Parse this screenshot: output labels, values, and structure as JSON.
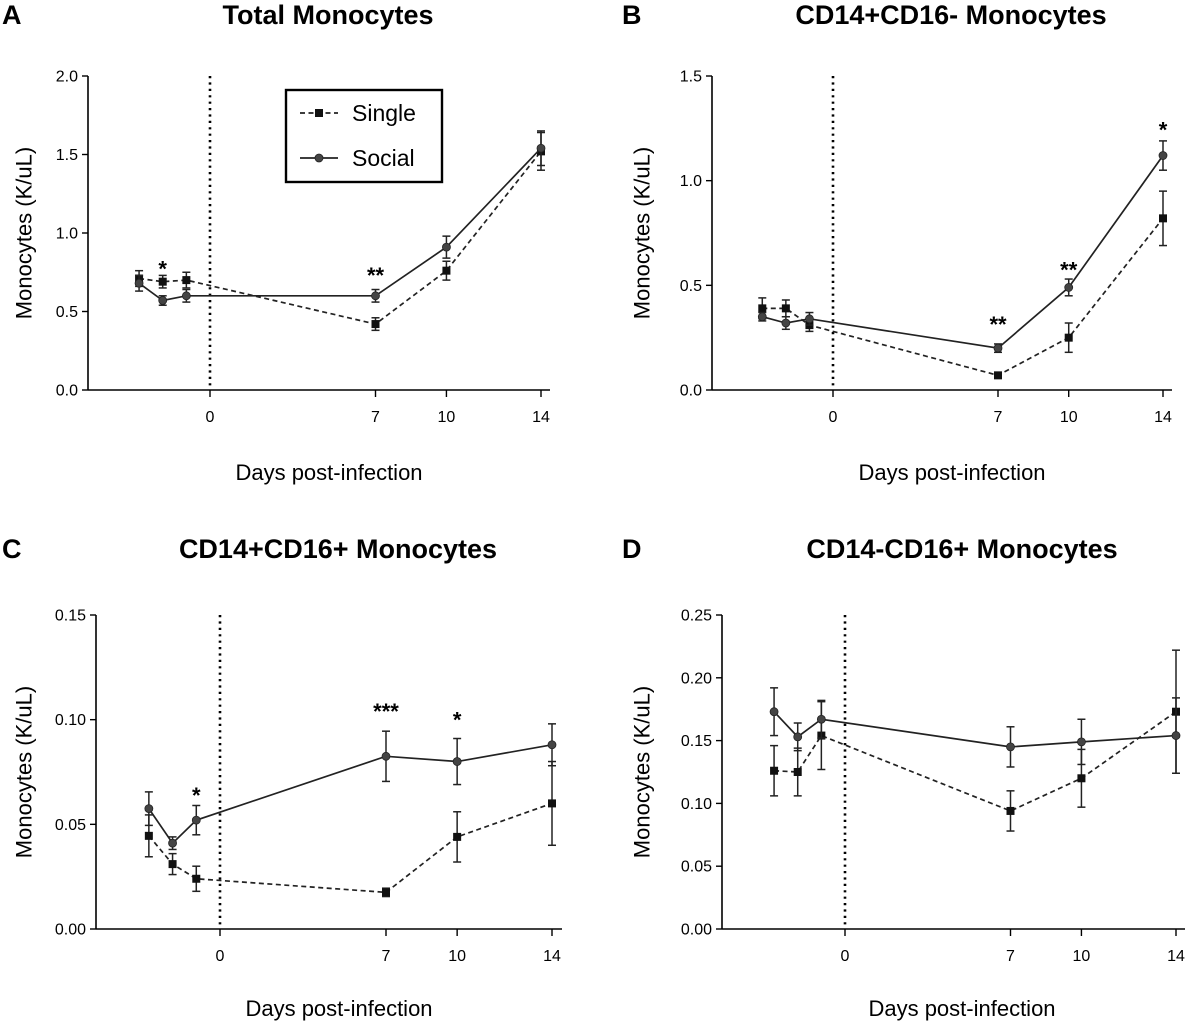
{
  "figure": {
    "legend": {
      "single_label": "Single",
      "social_label": "Social"
    }
  },
  "chart_data": [
    {
      "letter": "A",
      "type": "line",
      "title": "Total Monocytes",
      "xlabel": "Days post-infection",
      "ylabel": "Monocytes (K/uL)",
      "ylim": [
        0,
        2.0
      ],
      "yticks": [
        0.0,
        0.5,
        1.0,
        1.5,
        2.0
      ],
      "ytick_labels": [
        "0.0",
        "0.5",
        "1.0",
        "1.5",
        "2.0"
      ],
      "xlim": [
        -5,
        15
      ],
      "xticks": [
        0,
        7,
        10,
        14
      ],
      "xtick_labels": [
        "0",
        "7",
        "10",
        "14"
      ],
      "reference_line_x": 0,
      "has_legend": true,
      "series": [
        {
          "name": "Single",
          "style": "dashed",
          "marker": "square",
          "x": [
            -3,
            -2,
            -1,
            7,
            10,
            14
          ],
          "values": [
            0.71,
            0.69,
            0.7,
            0.42,
            0.76,
            1.52
          ],
          "err": [
            0.05,
            0.04,
            0.05,
            0.04,
            0.06,
            0.12
          ]
        },
        {
          "name": "Social",
          "style": "solid",
          "marker": "circle",
          "x": [
            -3,
            -2,
            -1,
            7,
            10,
            14
          ],
          "values": [
            0.68,
            0.57,
            0.6,
            0.6,
            0.91,
            1.54
          ],
          "err": [
            0.05,
            0.03,
            0.04,
            0.04,
            0.07,
            0.11
          ]
        }
      ],
      "annotations": [
        {
          "x": -2,
          "y": 0.78,
          "text": "*"
        },
        {
          "x": 7,
          "y": 0.74,
          "text": "**"
        }
      ]
    },
    {
      "letter": "B",
      "type": "line",
      "title": "CD14+CD16- Monocytes",
      "xlabel": "Days post-infection",
      "ylabel": "Monocytes (K/uL)",
      "ylim": [
        0,
        1.5
      ],
      "yticks": [
        0.0,
        0.5,
        1.0,
        1.5
      ],
      "ytick_labels": [
        "0.0",
        "0.5",
        "1.0",
        "1.5"
      ],
      "xlim": [
        -5,
        15
      ],
      "xticks": [
        0,
        7,
        10,
        14
      ],
      "xtick_labels": [
        "0",
        "7",
        "10",
        "14"
      ],
      "reference_line_x": 0,
      "has_legend": false,
      "series": [
        {
          "name": "Single",
          "style": "dashed",
          "marker": "square",
          "x": [
            -3,
            -2,
            -1,
            7,
            10,
            14
          ],
          "values": [
            0.39,
            0.39,
            0.31,
            0.07,
            0.25,
            0.82
          ],
          "err": [
            0.05,
            0.04,
            0.03,
            0.01,
            0.07,
            0.13
          ]
        },
        {
          "name": "Social",
          "style": "solid",
          "marker": "circle",
          "x": [
            -3,
            -2,
            -1,
            7,
            10,
            14
          ],
          "values": [
            0.35,
            0.32,
            0.34,
            0.2,
            0.49,
            1.12
          ],
          "err": [
            0.02,
            0.03,
            0.03,
            0.02,
            0.04,
            0.07
          ]
        }
      ],
      "annotations": [
        {
          "x": 7,
          "y": 0.32,
          "text": "**"
        },
        {
          "x": 10,
          "y": 0.58,
          "text": "**"
        },
        {
          "x": 14,
          "y": 1.25,
          "text": "*"
        }
      ]
    },
    {
      "letter": "C",
      "type": "line",
      "title": "CD14+CD16+ Monocytes",
      "xlabel": "Days post-infection",
      "ylabel": "Monocytes (K/uL)",
      "ylim": [
        0,
        0.15
      ],
      "yticks": [
        0.0,
        0.05,
        0.1,
        0.15
      ],
      "ytick_labels": [
        "0.00",
        "0.05",
        "0.10",
        "0.15"
      ],
      "xlim": [
        -5,
        15
      ],
      "xticks": [
        0,
        7,
        10,
        14
      ],
      "xtick_labels": [
        "0",
        "7",
        "10",
        "14"
      ],
      "reference_line_x": 0,
      "has_legend": false,
      "series": [
        {
          "name": "Single",
          "style": "dashed",
          "marker": "square",
          "x": [
            -3,
            -2,
            -1,
            7,
            10,
            14
          ],
          "values": [
            0.0445,
            0.031,
            0.024,
            0.0175,
            0.044,
            0.06
          ],
          "err": [
            0.01,
            0.005,
            0.006,
            0.002,
            0.012,
            0.02
          ]
        },
        {
          "name": "Social",
          "style": "solid",
          "marker": "circle",
          "x": [
            -3,
            -2,
            -1,
            7,
            10,
            14
          ],
          "values": [
            0.0575,
            0.041,
            0.052,
            0.0825,
            0.08,
            0.088
          ],
          "err": [
            0.008,
            0.003,
            0.007,
            0.012,
            0.011,
            0.01
          ]
        }
      ],
      "annotations": [
        {
          "x": -1,
          "y": 0.0645,
          "text": "*"
        },
        {
          "x": 7,
          "y": 0.1045,
          "text": "***"
        },
        {
          "x": 10,
          "y": 0.1005,
          "text": "*"
        }
      ]
    },
    {
      "letter": "D",
      "type": "line",
      "title": "CD14-CD16+ Monocytes",
      "xlabel": "Days post-infection",
      "ylabel": "Monocytes (K/uL)",
      "ylim": [
        0,
        0.25
      ],
      "yticks": [
        0.0,
        0.05,
        0.1,
        0.15,
        0.2,
        0.25
      ],
      "ytick_labels": [
        "0.00",
        "0.05",
        "0.10",
        "0.15",
        "0.20",
        "0.25"
      ],
      "xlim": [
        -5,
        15
      ],
      "xticks": [
        0,
        7,
        10,
        14
      ],
      "xtick_labels": [
        "0",
        "7",
        "10",
        "14"
      ],
      "reference_line_x": 0,
      "has_legend": false,
      "series": [
        {
          "name": "Single",
          "style": "dashed",
          "marker": "square",
          "x": [
            -3,
            -2,
            -1,
            7,
            10,
            14
          ],
          "values": [
            0.126,
            0.125,
            0.154,
            0.094,
            0.12,
            0.173
          ],
          "err": [
            0.02,
            0.019,
            0.027,
            0.016,
            0.023,
            0.049
          ]
        },
        {
          "name": "Social",
          "style": "solid",
          "marker": "circle",
          "x": [
            -3,
            -2,
            -1,
            7,
            10,
            14
          ],
          "values": [
            0.173,
            0.153,
            0.167,
            0.145,
            0.149,
            0.154
          ],
          "err": [
            0.019,
            0.011,
            0.015,
            0.016,
            0.018,
            0.03
          ]
        }
      ],
      "annotations": []
    }
  ]
}
